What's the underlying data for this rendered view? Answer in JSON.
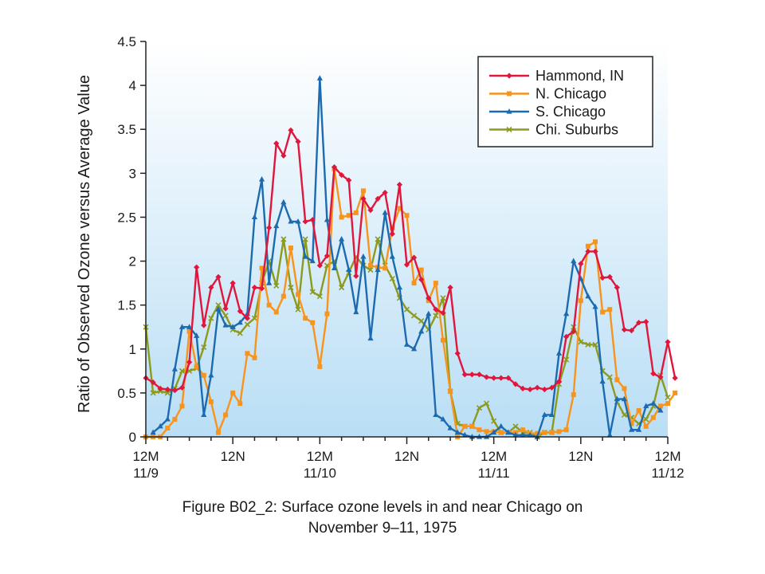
{
  "caption": {
    "line1": "Figure B02_2: Surface ozone levels in and near Chicago on",
    "line2": "November 9–11, 1975"
  },
  "chart_data": {
    "type": "line",
    "ylabel": "Ratio of Observed Ozone versus Average Value",
    "xlabel": "",
    "xlim": [
      0,
      72
    ],
    "ylim": [
      0,
      4.5
    ],
    "y_ticks": [
      0,
      0.5,
      1,
      1.5,
      2,
      2.5,
      3,
      3.5,
      4,
      4.5
    ],
    "y_tick_labels": [
      "0",
      "0.5",
      "1",
      "1.5",
      "2",
      "2.5",
      "3",
      "3.5",
      "4",
      "4.5"
    ],
    "x_ticks": [
      {
        "hour": 0,
        "line1": "12M",
        "line2": "11/9"
      },
      {
        "hour": 12,
        "line1": "12N",
        "line2": ""
      },
      {
        "hour": 24,
        "line1": "12M",
        "line2": "11/10"
      },
      {
        "hour": 36,
        "line1": "12N",
        "line2": ""
      },
      {
        "hour": 48,
        "line1": "12M",
        "line2": "11/11"
      },
      {
        "hour": 60,
        "line1": "12N",
        "line2": ""
      },
      {
        "hour": 72,
        "line1": "12M",
        "line2": "11/12"
      }
    ],
    "legend_position": "top-right",
    "background": "gradient light blue",
    "series": [
      {
        "name": "Hammond, IN",
        "color": "#e0163c",
        "marker": "diamond",
        "values": [
          0.67,
          0.62,
          0.55,
          0.54,
          0.53,
          0.56,
          0.85,
          1.93,
          1.27,
          1.7,
          1.82,
          1.46,
          1.75,
          1.43,
          1.35,
          1.7,
          1.69,
          2.38,
          3.34,
          3.2,
          3.49,
          3.36,
          2.45,
          2.47,
          1.95,
          2.06,
          3.07,
          2.98,
          2.92,
          1.83,
          2.71,
          2.58,
          2.71,
          2.78,
          2.31,
          2.87,
          1.96,
          2.04,
          1.79,
          1.58,
          1.45,
          1.41,
          1.7,
          0.95,
          0.71,
          0.71,
          0.71,
          0.68,
          0.67,
          0.67,
          0.67,
          0.6,
          0.55,
          0.54,
          0.56,
          0.54,
          0.56,
          0.63,
          1.14,
          1.2,
          1.97,
          2.11,
          2.11,
          1.81,
          1.82,
          1.7,
          1.22,
          1.21,
          1.3,
          1.31,
          0.72,
          0.68,
          1.08,
          0.67
        ]
      },
      {
        "name": "N. Chicago",
        "color": "#f7941d",
        "marker": "square",
        "values": [
          0.0,
          0.0,
          0.0,
          0.1,
          0.2,
          0.35,
          1.2,
          0.8,
          0.7,
          0.4,
          0.05,
          0.25,
          0.5,
          0.38,
          0.95,
          0.9,
          1.92,
          1.5,
          1.42,
          1.6,
          2.15,
          1.62,
          1.35,
          1.3,
          0.8,
          1.4,
          3.05,
          2.5,
          2.52,
          2.55,
          2.8,
          1.95,
          1.93,
          1.92,
          2.38,
          2.6,
          2.52,
          1.75,
          1.9,
          1.55,
          1.75,
          1.1,
          0.52,
          0.0,
          0.12,
          0.12,
          0.08,
          0.06,
          0.06,
          0.05,
          0.05,
          0.05,
          0.08,
          0.04,
          0.04,
          0.05,
          0.05,
          0.06,
          0.08,
          0.48,
          1.55,
          2.17,
          2.22,
          1.42,
          1.45,
          0.65,
          0.55,
          0.15,
          0.3,
          0.12,
          0.22,
          0.35,
          0.38,
          0.5
        ]
      },
      {
        "name": "S. Chicago",
        "color": "#1c6bb0",
        "marker": "triangle",
        "values": [
          null,
          0.05,
          0.12,
          0.2,
          0.77,
          1.25,
          1.25,
          1.15,
          0.25,
          0.7,
          1.45,
          1.27,
          1.25,
          1.3,
          1.4,
          2.5,
          2.93,
          1.75,
          2.4,
          2.67,
          2.45,
          2.45,
          2.05,
          2.0,
          4.08,
          2.47,
          1.92,
          2.25,
          1.9,
          1.42,
          2.05,
          1.12,
          1.9,
          2.55,
          2.05,
          1.7,
          1.05,
          1.0,
          1.2,
          1.4,
          0.25,
          0.2,
          0.1,
          0.05,
          0.02,
          0.0,
          0.0,
          0.0,
          0.05,
          0.12,
          0.05,
          0.02,
          0.02,
          0.02,
          0.0,
          0.25,
          0.25,
          0.95,
          1.4,
          2.0,
          1.8,
          1.6,
          1.48,
          0.63,
          0.02,
          0.43,
          0.43,
          0.08,
          0.08,
          0.35,
          0.38,
          0.3
        ]
      },
      {
        "name": "Chi. Suburbs",
        "color": "#8c9a1e",
        "marker": "x",
        "values": [
          1.25,
          0.5,
          0.52,
          0.5,
          0.55,
          0.75,
          0.75,
          0.78,
          1.02,
          1.35,
          1.5,
          1.38,
          1.22,
          1.18,
          1.28,
          1.35,
          1.75,
          2.0,
          1.72,
          2.25,
          1.7,
          1.45,
          2.25,
          1.65,
          1.6,
          1.95,
          2.0,
          1.7,
          1.87,
          2.05,
          1.95,
          1.9,
          2.25,
          1.95,
          1.8,
          1.58,
          1.45,
          1.38,
          1.32,
          1.22,
          1.38,
          1.58,
          0.52,
          0.15,
          0.12,
          0.12,
          0.33,
          0.38,
          0.18,
          0.05,
          0.05,
          0.12,
          0.05,
          0.05,
          0.0,
          0.05,
          0.05,
          0.6,
          0.88,
          1.25,
          1.08,
          1.05,
          1.05,
          0.75,
          0.68,
          0.4,
          0.25,
          0.22,
          0.15,
          0.2,
          0.35,
          0.7,
          0.45
        ]
      }
    ]
  }
}
